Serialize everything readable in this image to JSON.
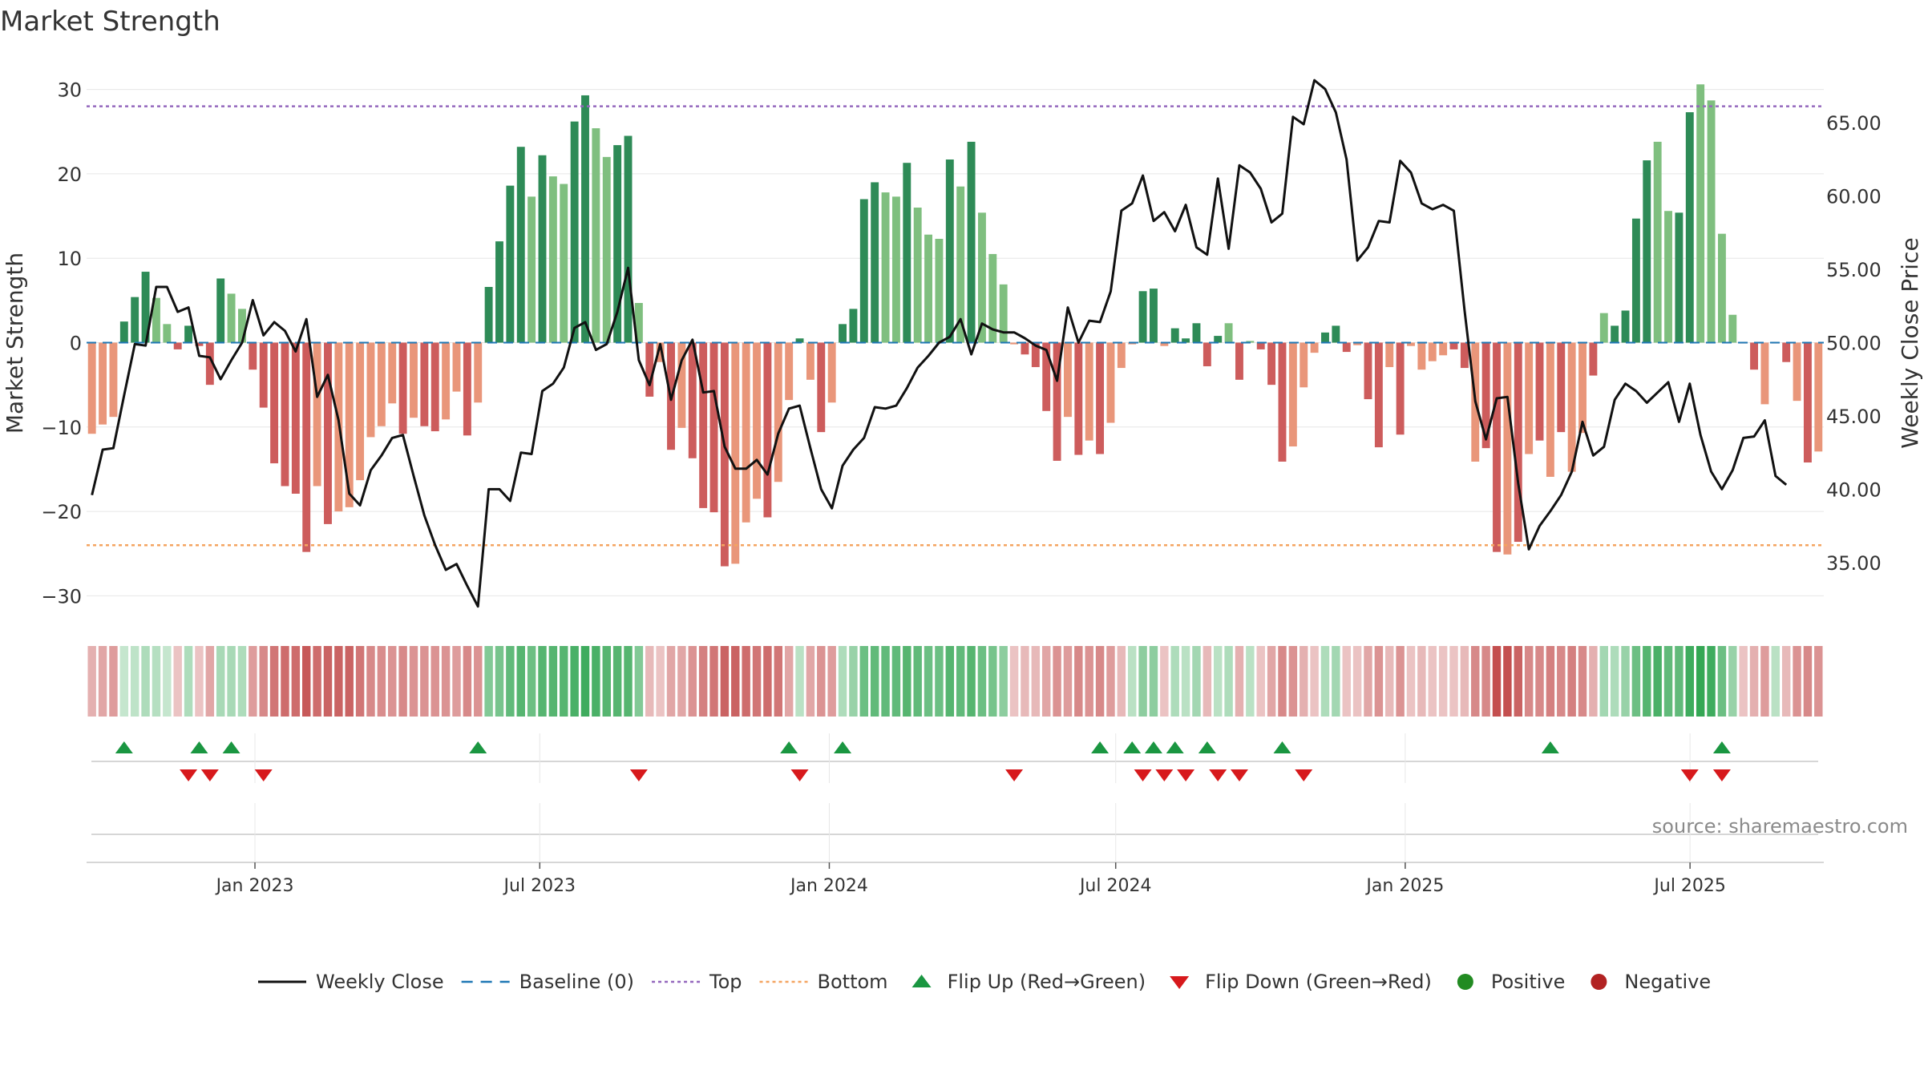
{
  "colors": {
    "pos_strong": "#2e8b57",
    "pos_weak": "#7fbf7f",
    "neg_strong": "#cd5c5c",
    "neg_weak": "#e9967a",
    "price": "#111111",
    "baseline": "#1f77b4",
    "top": "#9467bd",
    "bottom": "#f4a460",
    "flip_up": "#1a9641",
    "flip_down": "#d7191c",
    "positive": "#228b22",
    "negative": "#b22222",
    "grid": "#e6e6e6"
  },
  "chart_data": {
    "type": "bar",
    "title": "Market Strength",
    "ylabel": "Market Strength",
    "y2label": "Weekly Close Price",
    "ylim": [
      -33,
      33
    ],
    "y2lim": [
      31,
      69
    ],
    "yticks": [
      -30,
      -20,
      -10,
      0,
      10,
      20,
      30
    ],
    "ytick_labels": [
      "−30",
      "−20",
      "−10",
      "0",
      "10",
      "20",
      "30"
    ],
    "y2ticks": [
      35,
      40,
      45,
      50,
      55,
      60,
      65
    ],
    "y2tick_labels": [
      "35.00",
      "40.00",
      "45.00",
      "50.00",
      "55.00",
      "60.00",
      "65.00"
    ],
    "x_start": "2022-09-16",
    "x_end": "2025-09-24",
    "xticks": [
      {
        "date": "2023-01-01",
        "label": "Jan 2023"
      },
      {
        "date": "2023-07-01",
        "label": "Jul 2023"
      },
      {
        "date": "2024-01-01",
        "label": "Jan 2024"
      },
      {
        "date": "2024-07-01",
        "label": "Jul 2024"
      },
      {
        "date": "2025-01-01",
        "label": "Jan 2025"
      },
      {
        "date": "2025-07-01",
        "label": "Jul 2025"
      }
    ],
    "top_line": 28,
    "bottom_line": -24,
    "baseline": 0,
    "strength": [
      -10.8,
      -9.7,
      -8.8,
      2.5,
      5.4,
      8.4,
      5.3,
      2.2,
      -0.8,
      2.0,
      -0.4,
      -5.0,
      7.6,
      5.8,
      4.0,
      -3.2,
      -7.7,
      -14.3,
      -17.0,
      -17.9,
      -24.8,
      -17.0,
      -21.5,
      -20.0,
      -19.5,
      -16.3,
      -11.2,
      -9.9,
      -7.2,
      -10.8,
      -8.9,
      -9.9,
      -10.5,
      -9.1,
      -5.8,
      -11.0,
      -7.1,
      6.6,
      12.0,
      18.6,
      23.2,
      17.3,
      22.2,
      19.7,
      18.8,
      26.2,
      29.3,
      25.4,
      22.0,
      23.4,
      24.5,
      4.7,
      -6.4,
      -2.3,
      -12.7,
      -10.1,
      -13.7,
      -19.6,
      -20.1,
      -26.5,
      -26.2,
      -21.3,
      -18.5,
      -20.7,
      -16.5,
      -6.8,
      0.5,
      -4.4,
      -10.6,
      -7.1,
      2.2,
      4.0,
      17.0,
      19.0,
      17.8,
      17.3,
      21.3,
      16.0,
      12.8,
      12.3,
      21.7,
      18.5,
      23.8,
      15.4,
      10.5,
      6.9,
      -0.2,
      -1.4,
      -2.9,
      -8.1,
      -14.0,
      -8.8,
      -13.3,
      -11.6,
      -13.2,
      -9.5,
      -3.0,
      -0.2,
      6.1,
      6.4,
      -0.4,
      1.7,
      0.5,
      2.3,
      -2.8,
      0.8,
      2.3,
      -4.4,
      0.2,
      -0.8,
      -5.0,
      -14.1,
      -12.3,
      -5.3,
      -1.2,
      1.2,
      2.0,
      -1.1,
      -0.3,
      -6.7,
      -12.4,
      -2.9,
      -10.9,
      -0.4,
      -3.2,
      -2.2,
      -1.5,
      -0.8,
      -3.0,
      -14.1,
      -12.5,
      -24.8,
      -25.1,
      -23.6,
      -13.2,
      -11.6,
      -15.9,
      -10.6,
      -15.3,
      -10.7,
      -3.9,
      3.5,
      2.0,
      3.8,
      14.7,
      21.6,
      23.8,
      15.6,
      15.4,
      27.3,
      30.6,
      28.7,
      12.9,
      3.3,
      -0.1,
      -3.2,
      -7.3,
      -0.1,
      -2.3,
      -6.9,
      -14.2,
      -12.9
    ],
    "strength_strength": [
      "w",
      "w",
      "w",
      "s",
      "s",
      "s",
      "w",
      "w",
      "s",
      "s",
      "s",
      "s",
      "s",
      "w",
      "w",
      "s",
      "s",
      "s",
      "s",
      "s",
      "s",
      "w",
      "s",
      "w",
      "w",
      "w",
      "w",
      "w",
      "w",
      "s",
      "w",
      "s",
      "s",
      "w",
      "w",
      "s",
      "w",
      "s",
      "s",
      "s",
      "s",
      "w",
      "s",
      "w",
      "w",
      "s",
      "s",
      "w",
      "w",
      "s",
      "s",
      "w",
      "s",
      "w",
      "s",
      "w",
      "s",
      "s",
      "s",
      "s",
      "w",
      "w",
      "w",
      "s",
      "w",
      "w",
      "s",
      "w",
      "s",
      "w",
      "s",
      "s",
      "s",
      "s",
      "w",
      "w",
      "s",
      "w",
      "w",
      "w",
      "s",
      "w",
      "s",
      "w",
      "w",
      "w",
      "w",
      "s",
      "s",
      "s",
      "s",
      "w",
      "s",
      "w",
      "s",
      "w",
      "w",
      "w",
      "s",
      "s",
      "w",
      "s",
      "s",
      "s",
      "s",
      "s",
      "w",
      "s",
      "w",
      "s",
      "s",
      "s",
      "w",
      "w",
      "w",
      "s",
      "s",
      "s",
      "w",
      "s",
      "s",
      "w",
      "s",
      "w",
      "w",
      "w",
      "w",
      "s",
      "s",
      "w",
      "s",
      "s",
      "w",
      "s",
      "w",
      "s",
      "w",
      "s",
      "w",
      "w",
      "s",
      "w",
      "s",
      "s",
      "s",
      "s",
      "w",
      "w",
      "s",
      "s",
      "w",
      "w",
      "w",
      "w",
      "s",
      "s",
      "w",
      "s",
      "s",
      "w",
      "s",
      "w"
    ],
    "price": [
      39.6,
      42.7,
      42.8,
      46.4,
      49.9,
      49.8,
      53.8,
      53.8,
      52.1,
      52.4,
      49.1,
      49.0,
      47.5,
      48.8,
      50.0,
      52.9,
      50.5,
      51.4,
      50.8,
      49.4,
      51.6,
      46.3,
      47.8,
      44.7,
      39.7,
      38.9,
      41.3,
      42.3,
      43.5,
      43.7,
      40.9,
      38.2,
      36.2,
      34.5,
      34.9,
      33.4,
      32.0,
      40.0,
      40.0,
      39.2,
      42.5,
      42.4,
      46.7,
      47.2,
      48.3,
      51.0,
      51.4,
      49.5,
      49.9,
      52.1,
      55.1,
      48.8,
      47.1,
      49.9,
      46.1,
      48.8,
      50.2,
      46.6,
      46.7,
      42.9,
      41.4,
      41.4,
      42.0,
      41.0,
      43.8,
      45.5,
      45.7,
      42.8,
      40.0,
      38.7,
      41.6,
      42.7,
      43.5,
      45.6,
      45.5,
      45.7,
      46.9,
      48.3,
      49.1,
      50.0,
      50.4,
      51.6,
      49.2,
      51.3,
      50.9,
      50.7,
      50.7,
      50.3,
      49.8,
      49.5,
      47.4,
      52.4,
      50.0,
      51.5,
      51.4,
      53.5,
      59.0,
      59.5,
      61.4,
      58.3,
      58.9,
      57.6,
      59.4,
      56.5,
      56.0,
      61.2,
      56.4,
      62.1,
      61.6,
      60.5,
      58.2,
      58.8,
      65.4,
      64.9,
      67.9,
      67.3,
      65.7,
      62.5,
      55.6,
      56.5,
      58.3,
      58.2,
      62.4,
      61.6,
      59.5,
      59.1,
      59.4,
      59.0,
      52.2,
      46.0,
      43.4,
      46.2,
      46.3,
      40.4,
      35.9,
      37.5,
      38.5,
      39.6,
      41.2,
      44.6,
      42.3,
      42.9,
      46.1,
      47.2,
      46.7,
      45.9,
      46.6,
      47.3,
      44.6,
      47.2,
      43.7,
      41.2,
      40.0,
      41.3,
      43.5,
      43.6,
      44.7,
      40.9,
      40.3
    ],
    "heat_values": [
      -3.0,
      -3.5,
      -4.0,
      1.5,
      1.8,
      2.5,
      2.2,
      1.5,
      -2.0,
      2.5,
      -2.0,
      -3.5,
      2.8,
      2.8,
      2.5,
      -4.0,
      -5.0,
      -6.0,
      -6.5,
      -6.5,
      -7.5,
      -6.5,
      -7.0,
      -7.0,
      -7.0,
      -6.0,
      -5.0,
      -4.8,
      -4.5,
      -5.0,
      -4.5,
      -4.5,
      -4.5,
      -4.5,
      -4.0,
      -5.0,
      -4.5,
      4.5,
      5.0,
      6.0,
      6.5,
      5.5,
      6.5,
      6.5,
      6.5,
      7.0,
      7.5,
      7.0,
      6.5,
      6.5,
      6.5,
      4.5,
      -2.5,
      -2.0,
      -3.5,
      -3.5,
      -4.5,
      -5.5,
      -6.0,
      -7.0,
      -7.0,
      -6.5,
      -6.0,
      -6.5,
      -6.0,
      -3.5,
      2.0,
      -3.5,
      -4.5,
      -4.0,
      2.5,
      3.5,
      5.5,
      6.0,
      6.0,
      6.0,
      6.5,
      6.0,
      5.5,
      5.5,
      6.5,
      6.0,
      6.5,
      5.5,
      5.0,
      4.0,
      -2.0,
      -2.5,
      -2.5,
      -3.5,
      -4.5,
      -4.0,
      -5.0,
      -4.5,
      -5.0,
      -4.0,
      -2.5,
      2.0,
      4.0,
      4.0,
      -2.0,
      2.5,
      2.0,
      3.0,
      -2.5,
      2.0,
      2.5,
      -3.0,
      2.0,
      -2.0,
      -3.5,
      -5.0,
      -4.5,
      -3.0,
      -2.0,
      2.5,
      3.0,
      -2.0,
      -2.0,
      -3.5,
      -4.5,
      -2.5,
      -4.5,
      -2.0,
      -2.5,
      -2.0,
      -2.0,
      -2.0,
      -2.5,
      -5.0,
      -5.0,
      -8.0,
      -8.0,
      -7.0,
      -5.0,
      -5.0,
      -5.5,
      -5.0,
      -5.5,
      -5.0,
      -3.0,
      3.0,
      2.5,
      3.5,
      5.5,
      6.5,
      7.0,
      6.0,
      6.0,
      7.5,
      8.0,
      7.5,
      5.5,
      3.5,
      -2.0,
      -3.0,
      -4.0,
      2.0,
      -2.5,
      -4.5,
      -5.0,
      -4.5
    ],
    "flip_up_weeks": [
      3,
      10,
      13,
      36,
      65,
      70,
      94,
      97,
      99,
      101,
      104,
      111,
      136,
      152
    ],
    "flip_down_weeks": [
      9,
      11,
      16,
      51,
      66,
      86,
      98,
      100,
      102,
      105,
      107,
      113,
      149,
      152
    ],
    "source": "source: sharemaestro.com",
    "legend": [
      {
        "kind": "line",
        "label": "Weekly Close"
      },
      {
        "kind": "baseline",
        "label": "Baseline (0)"
      },
      {
        "kind": "top",
        "label": "Top"
      },
      {
        "kind": "bottom",
        "label": "Bottom"
      },
      {
        "kind": "up",
        "label": "Flip Up (Red→Green)"
      },
      {
        "kind": "down",
        "label": "Flip Down (Green→Red)"
      },
      {
        "kind": "pos",
        "label": "Positive"
      },
      {
        "kind": "neg",
        "label": "Negative"
      }
    ]
  }
}
